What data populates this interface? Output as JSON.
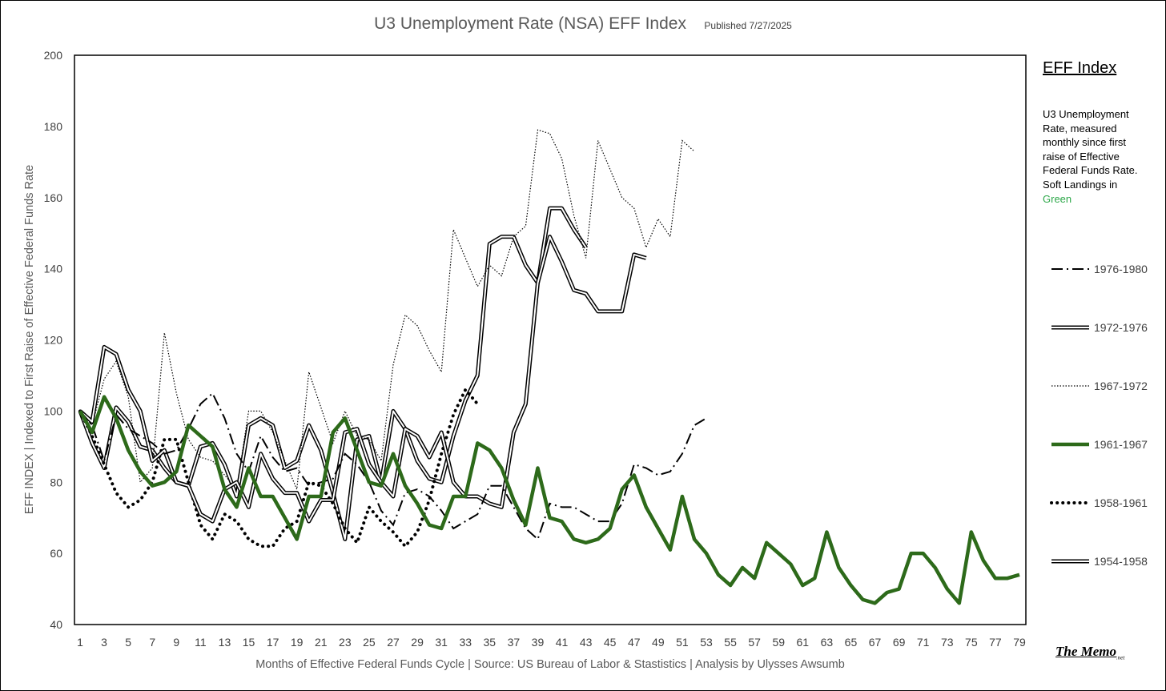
{
  "title": "U3 Unemployment Rate (NSA) EFF Index",
  "published": "Published 7/27/2025",
  "side_panel": {
    "heading": "EFF Index",
    "description": "U3 Unemployment Rate, measured monthly since first raise of Effective Federal Funds Rate. Soft Landings in ",
    "description_highlight": "Green",
    "highlight_color": "#2ea84a"
  },
  "logo": {
    "text": "The Memo",
    "suffix": ".net"
  },
  "chart_data": {
    "type": "line",
    "title": "U3 Unemployment Rate (NSA) EFF Index",
    "xlabel": "Months of Effective Federal Funds Cycle  |  Source: US Bureau of Labor & Stastistics  |  Analysis by Ulysses Awsumb",
    "ylabel": "EFF INDEX | Indexed to First Raise of Effective Federal Funds Rate",
    "xlim": [
      1,
      79
    ],
    "ylim": [
      40,
      200
    ],
    "yticks": [
      40,
      60,
      80,
      100,
      120,
      140,
      160,
      180,
      200
    ],
    "xticks": [
      1,
      3,
      5,
      7,
      9,
      11,
      13,
      15,
      17,
      19,
      21,
      23,
      25,
      27,
      29,
      31,
      33,
      35,
      37,
      39,
      41,
      43,
      45,
      47,
      49,
      51,
      53,
      55,
      57,
      59,
      61,
      63,
      65,
      67,
      69,
      71,
      73,
      75,
      77,
      79
    ],
    "legend_position": "right",
    "series": [
      {
        "name": "1976-1980",
        "style": "dashdot",
        "color": "#000000",
        "x": [
          1,
          2,
          3,
          4,
          5,
          6,
          7,
          8,
          9,
          10,
          11,
          12,
          13,
          14,
          15,
          16,
          17,
          18,
          19,
          20,
          21,
          22,
          23,
          24,
          25,
          26,
          27,
          28,
          29,
          30,
          31,
          32,
          33,
          34,
          35,
          36,
          37,
          38,
          39,
          40,
          41,
          42,
          43,
          44,
          45,
          46,
          47,
          48,
          49,
          50,
          51,
          52,
          53
        ],
        "y": [
          100,
          96,
          86,
          99,
          95,
          93,
          91,
          88,
          89,
          95,
          102,
          105,
          98,
          88,
          83,
          93,
          87,
          83,
          84,
          79,
          80,
          81,
          88,
          85,
          80,
          72,
          68,
          77,
          78,
          76,
          72,
          67,
          69,
          71,
          79,
          79,
          73,
          67,
          64,
          74,
          73,
          73,
          71,
          69,
          69,
          74,
          85,
          84,
          82,
          83,
          88,
          96,
          98
        ]
      },
      {
        "name": "1972-1976",
        "style": "double",
        "color": "#000000",
        "x": [
          1,
          2,
          3,
          4,
          5,
          6,
          7,
          8,
          9,
          10,
          11,
          12,
          13,
          14,
          15,
          16,
          17,
          18,
          19,
          20,
          21,
          22,
          23,
          24,
          25,
          26,
          27,
          28,
          29,
          30,
          31,
          32,
          33,
          34,
          35,
          36,
          37,
          38,
          39,
          40,
          41,
          42,
          43,
          44,
          45,
          46,
          47,
          48
        ],
        "y": [
          100,
          97,
          118,
          116,
          106,
          100,
          86,
          89,
          80,
          79,
          71,
          69,
          78,
          80,
          73,
          88,
          81,
          77,
          77,
          69,
          75,
          75,
          94,
          95,
          85,
          80,
          76,
          95,
          93,
          87,
          94,
          80,
          76,
          76,
          74,
          73,
          94,
          102,
          136,
          149,
          142,
          134,
          133,
          128,
          128,
          128,
          144,
          143
        ]
      },
      {
        "name": "1967-1972",
        "style": "dotted",
        "color": "#000000",
        "x": [
          1,
          2,
          3,
          4,
          5,
          6,
          7,
          8,
          9,
          10,
          11,
          12,
          13,
          14,
          15,
          16,
          17,
          18,
          19,
          20,
          21,
          22,
          23,
          24,
          25,
          26,
          27,
          28,
          29,
          30,
          31,
          32,
          33,
          34,
          35,
          36,
          37,
          38,
          39,
          40,
          41,
          42,
          43,
          44,
          45,
          46,
          47,
          48,
          49,
          50,
          51,
          52
        ],
        "y": [
          100,
          96,
          109,
          114,
          104,
          80,
          84,
          122,
          105,
          92,
          87,
          86,
          82,
          78,
          100,
          100,
          94,
          86,
          78,
          111,
          101,
          91,
          100,
          93,
          92,
          86,
          113,
          127,
          124,
          117,
          111,
          151,
          143,
          135,
          141,
          138,
          149,
          152,
          179,
          178,
          171,
          155,
          143,
          176,
          168,
          160,
          157,
          146,
          154,
          149,
          176,
          173
        ]
      },
      {
        "name": "1961-1967",
        "style": "thick",
        "color": "#2d6a1a",
        "x": [
          1,
          2,
          3,
          4,
          5,
          6,
          7,
          8,
          9,
          10,
          11,
          12,
          13,
          14,
          15,
          16,
          17,
          18,
          19,
          20,
          21,
          22,
          23,
          24,
          25,
          26,
          27,
          28,
          29,
          30,
          31,
          32,
          33,
          34,
          35,
          36,
          37,
          38,
          39,
          40,
          41,
          42,
          43,
          44,
          45,
          46,
          47,
          48,
          49,
          50,
          51,
          52,
          53,
          54,
          55,
          56,
          57,
          58,
          59,
          60,
          61,
          62,
          63,
          64,
          65,
          66,
          67,
          68,
          69,
          70,
          71,
          72,
          73,
          74,
          75,
          76,
          77,
          78,
          79
        ],
        "y": [
          100,
          94,
          104,
          98,
          89,
          83,
          79,
          80,
          83,
          96,
          93,
          90,
          78,
          73,
          84,
          76,
          76,
          70,
          64,
          76,
          76,
          94,
          98,
          89,
          80,
          79,
          88,
          79,
          74,
          68,
          67,
          76,
          76,
          91,
          89,
          84,
          75,
          68,
          84,
          70,
          69,
          64,
          63,
          64,
          67,
          78,
          82,
          73,
          67,
          61,
          76,
          64,
          60,
          54,
          51,
          56,
          53,
          63,
          60,
          57,
          51,
          53,
          66,
          56,
          51,
          47,
          46,
          49,
          50,
          60,
          60,
          56,
          50,
          46,
          66,
          58,
          53,
          53,
          54
        ]
      },
      {
        "name": "1958-1961",
        "style": "dotted-thick",
        "color": "#000000",
        "x": [
          1,
          2,
          3,
          4,
          5,
          6,
          7,
          8,
          9,
          10,
          11,
          12,
          13,
          14,
          15,
          16,
          17,
          18,
          19,
          20,
          21,
          22,
          23,
          24,
          25,
          26,
          27,
          28,
          29,
          30,
          31,
          32,
          33,
          34
        ],
        "y": [
          100,
          93,
          85,
          77,
          73,
          75,
          80,
          92,
          92,
          80,
          68,
          64,
          71,
          69,
          64,
          62,
          62,
          67,
          69,
          80,
          79,
          74,
          67,
          63,
          73,
          69,
          66,
          62,
          66,
          75,
          88,
          99,
          106,
          102
        ]
      },
      {
        "name": "1954-1958",
        "style": "double",
        "color": "#000000",
        "x": [
          1,
          2,
          3,
          4,
          5,
          6,
          7,
          8,
          9,
          10,
          11,
          12,
          13,
          14,
          15,
          16,
          17,
          18,
          19,
          20,
          21,
          22,
          23,
          24,
          25,
          26,
          27,
          28,
          29,
          30,
          31,
          32,
          33,
          34,
          35,
          36,
          37,
          38,
          39,
          40,
          41,
          42,
          43
        ],
        "y": [
          100,
          91,
          84,
          101,
          97,
          90,
          89,
          84,
          80,
          79,
          90,
          91,
          85,
          76,
          96,
          98,
          96,
          84,
          86,
          96,
          89,
          77,
          64,
          92,
          93,
          80,
          100,
          95,
          86,
          81,
          80,
          93,
          103,
          110,
          147,
          149,
          149,
          141,
          136,
          157,
          157,
          151,
          146
        ]
      }
    ]
  }
}
